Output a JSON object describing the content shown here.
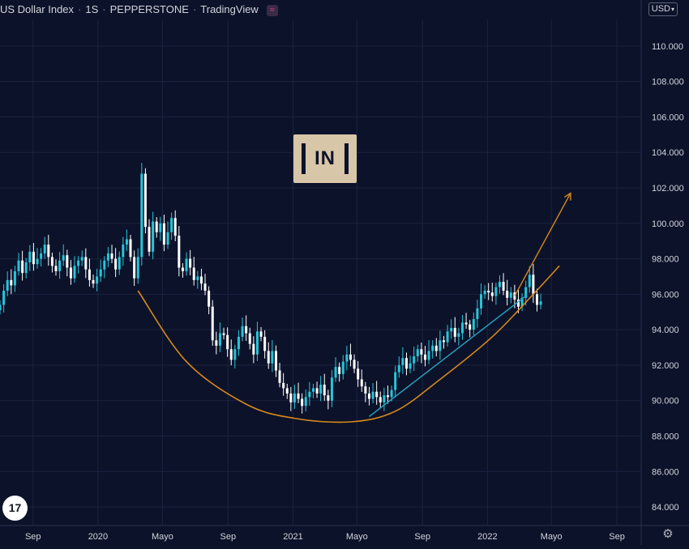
{
  "header": {
    "symbol": "US Dollar Index",
    "interval": "1S",
    "exchange": "PEPPERSTONE",
    "provider": "TradingView"
  },
  "currency_selector": "USD",
  "logo_text": "17",
  "watermark_text": "IN",
  "colors": {
    "background": "#0c1229",
    "up_candle": "#26c6da",
    "down_candle": "#ffffff",
    "cup_curve": "#d6891b",
    "trend_line": "#26a6c4",
    "grid": "#1c2340",
    "axis_text": "#d1d4dc"
  },
  "chart_data": {
    "type": "candlestick",
    "title": "US Dollar Index · 1S · PEPPERSTONE · TradingView",
    "x_ticks": [
      "Sep",
      "2020",
      "Mayo",
      "Sep",
      "2021",
      "Mayo",
      "Sep",
      "2022",
      "Mayo",
      "Sep"
    ],
    "y_ticks": [
      "84.000",
      "86.000",
      "88.000",
      "90.000",
      "92.000",
      "94.000",
      "96.000",
      "98.000",
      "100.000",
      "102.000",
      "104.000",
      "106.000",
      "108.000",
      "110.000"
    ],
    "ylim": [
      83.0,
      111.5
    ],
    "timeline": {
      "start": "2019-07-01",
      "end": "2022-10-15"
    },
    "candles_close": [
      95.4,
      96.2,
      96.8,
      96.5,
      97.3,
      97.9,
      97.2,
      97.8,
      98.4,
      97.7,
      98.0,
      98.3,
      98.8,
      98.1,
      97.6,
      97.3,
      97.9,
      98.2,
      97.5,
      96.9,
      97.6,
      97.9,
      98.1,
      97.4,
      96.8,
      96.6,
      97.0,
      97.4,
      97.9,
      98.3,
      98.0,
      97.4,
      98.1,
      98.8,
      99.1,
      98.1,
      96.9,
      98.1,
      102.8,
      99.8,
      98.4,
      100.1,
      99.5,
      100.0,
      98.8,
      99.5,
      100.3,
      99.3,
      97.5,
      97.3,
      98.0,
      97.5,
      96.8,
      97.0,
      96.6,
      96.2,
      95.3,
      93.4,
      93.1,
      93.8,
      93.7,
      92.9,
      92.3,
      92.9,
      93.6,
      94.2,
      93.8,
      93.2,
      92.6,
      93.9,
      93.6,
      92.8,
      92.1,
      92.8,
      91.7,
      91.0,
      90.7,
      90.4,
      89.9,
      90.4,
      90.1,
      89.7,
      90.2,
      90.5,
      90.7,
      90.4,
      90.9,
      90.3,
      90.0,
      91.3,
      91.9,
      91.5,
      92.2,
      92.6,
      92.3,
      91.8,
      91.2,
      90.8,
      90.4,
      90.1,
      90.5,
      90.2,
      89.9,
      90.3,
      90.2,
      90.6,
      91.6,
      92.0,
      92.4,
      91.8,
      92.1,
      92.5,
      92.9,
      92.6,
      92.3,
      92.8,
      93.1,
      92.8,
      93.4,
      93.3,
      93.9,
      94.1,
      93.6,
      93.8,
      94.4,
      94.3,
      94.0,
      94.6,
      95.2,
      96.0,
      96.2,
      96.1,
      95.9,
      96.4,
      96.7,
      96.2,
      95.8,
      96.1,
      95.7,
      95.3,
      95.8,
      96.4,
      97.1,
      96.0,
      95.4,
      95.6
    ],
    "cup_curve": {
      "color": "#d6891b",
      "points": [
        {
          "x": "2020-03-16",
          "y": 96.2
        },
        {
          "x": "2020-06-15",
          "y": 92.2
        },
        {
          "x": "2020-10-05",
          "y": 89.8
        },
        {
          "x": "2021-01-04",
          "y": 89.0
        },
        {
          "x": "2021-04-19",
          "y": 88.8
        },
        {
          "x": "2021-07-12",
          "y": 89.4
        },
        {
          "x": "2021-10-04",
          "y": 91.2
        },
        {
          "x": "2022-01-10",
          "y": 93.6
        },
        {
          "x": "2022-03-28",
          "y": 96.0
        },
        {
          "x": "2022-05-16",
          "y": 97.6
        }
      ]
    },
    "arrow": {
      "color": "#d6891b",
      "from": {
        "x": "2022-02-21",
        "y": 95.9
      },
      "to": {
        "x": "2022-06-06",
        "y": 101.7
      }
    },
    "trend_line": {
      "color": "#26a6c4",
      "from": {
        "x": "2021-05-24",
        "y": 89.1
      },
      "to": {
        "x": "2022-03-14",
        "y": 95.9
      }
    }
  }
}
